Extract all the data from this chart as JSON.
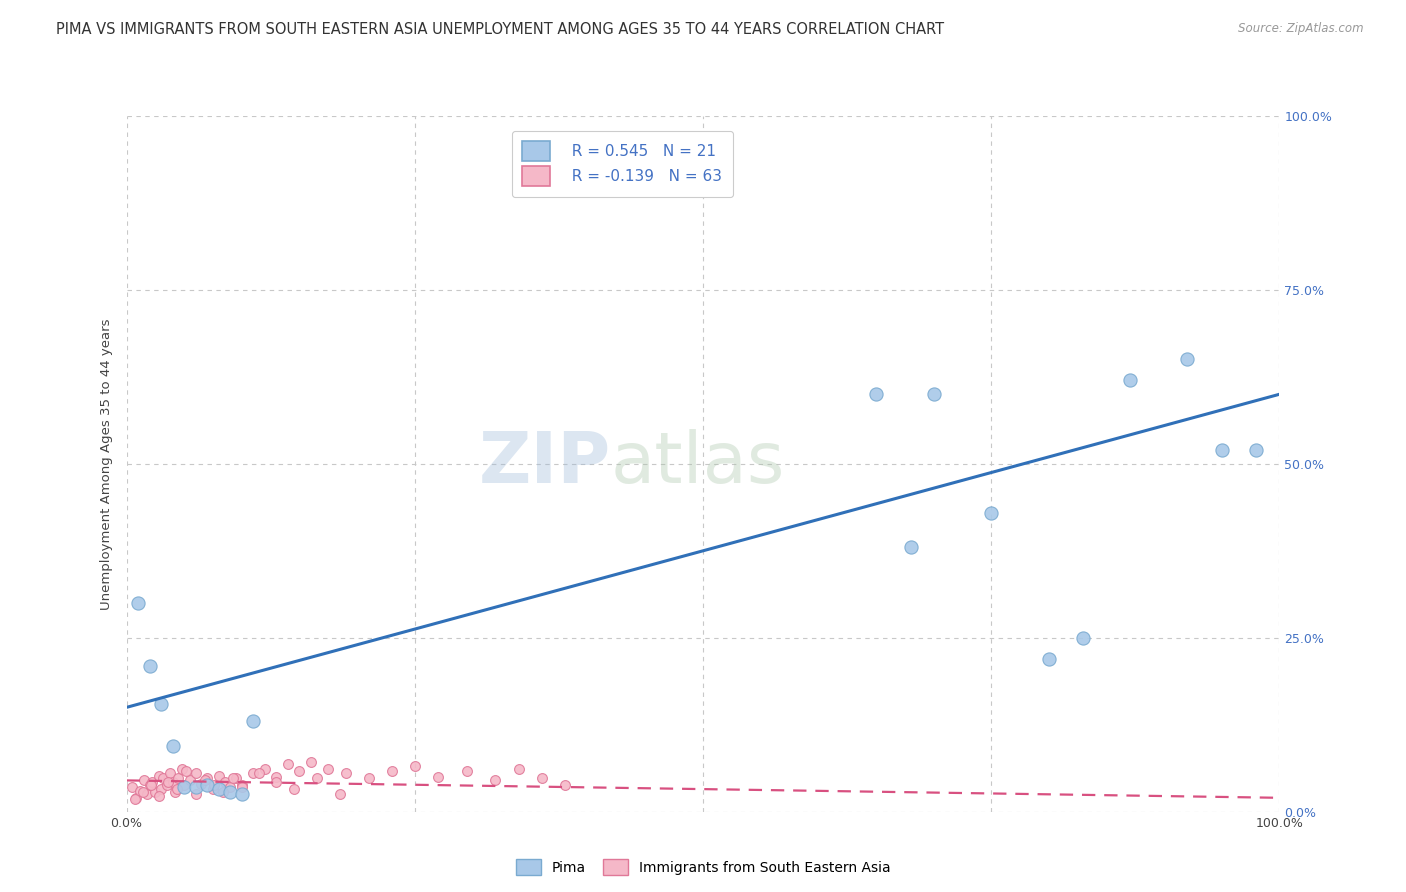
{
  "title": "PIMA VS IMMIGRANTS FROM SOUTH EASTERN ASIA UNEMPLOYMENT AMONG AGES 35 TO 44 YEARS CORRELATION CHART",
  "source": "Source: ZipAtlas.com",
  "ylabel": "Unemployment Among Ages 35 to 44 years",
  "xlim": [
    0,
    1.0
  ],
  "ylim": [
    0,
    1.0
  ],
  "xticks": [
    0.0,
    0.25,
    0.5,
    0.75,
    1.0
  ],
  "xtick_labels": [
    "0.0%",
    "",
    "",
    "",
    "100.0%"
  ],
  "yticks": [
    0.0,
    0.25,
    0.5,
    0.75,
    1.0
  ],
  "right_ytick_labels": [
    "0.0%",
    "25.0%",
    "50.0%",
    "75.0%",
    "100.0%"
  ],
  "pima_color": "#A8C8E8",
  "pima_edge_color": "#7AAAD0",
  "immigrants_color": "#F5B8C8",
  "immigrants_edge_color": "#E07898",
  "pima_R": 0.545,
  "pima_N": 21,
  "immigrants_R": -0.139,
  "immigrants_N": 63,
  "pima_line_color": "#3070B8",
  "immigrants_line_color": "#D85080",
  "watermark_zip": "ZIP",
  "watermark_atlas": "atlas",
  "background_color": "#FFFFFF",
  "grid_color": "#C8C8C8",
  "pima_x": [
    0.01,
    0.02,
    0.03,
    0.04,
    0.05,
    0.06,
    0.07,
    0.08,
    0.09,
    0.1,
    0.11,
    0.65,
    0.7,
    0.75,
    0.8,
    0.83,
    0.87,
    0.92,
    0.95,
    0.98,
    0.68
  ],
  "pima_y": [
    0.3,
    0.21,
    0.155,
    0.095,
    0.035,
    0.035,
    0.038,
    0.032,
    0.028,
    0.025,
    0.13,
    0.6,
    0.6,
    0.43,
    0.22,
    0.25,
    0.62,
    0.65,
    0.52,
    0.52,
    0.38
  ],
  "immigrants_x": [
    0.005,
    0.008,
    0.012,
    0.015,
    0.018,
    0.02,
    0.022,
    0.025,
    0.028,
    0.03,
    0.032,
    0.035,
    0.038,
    0.04,
    0.042,
    0.045,
    0.048,
    0.05,
    0.055,
    0.06,
    0.065,
    0.07,
    0.075,
    0.08,
    0.085,
    0.09,
    0.095,
    0.1,
    0.11,
    0.12,
    0.13,
    0.14,
    0.15,
    0.16,
    0.175,
    0.19,
    0.21,
    0.23,
    0.25,
    0.27,
    0.295,
    0.32,
    0.34,
    0.36,
    0.38,
    0.007,
    0.014,
    0.021,
    0.028,
    0.036,
    0.044,
    0.052,
    0.06,
    0.068,
    0.076,
    0.084,
    0.092,
    0.1,
    0.115,
    0.13,
    0.145,
    0.165,
    0.185
  ],
  "immigrants_y": [
    0.035,
    0.02,
    0.03,
    0.045,
    0.025,
    0.038,
    0.042,
    0.028,
    0.052,
    0.032,
    0.048,
    0.038,
    0.055,
    0.042,
    0.028,
    0.048,
    0.062,
    0.038,
    0.045,
    0.055,
    0.04,
    0.048,
    0.032,
    0.052,
    0.042,
    0.035,
    0.048,
    0.038,
    0.055,
    0.062,
    0.05,
    0.068,
    0.058,
    0.072,
    0.062,
    0.055,
    0.048,
    0.058,
    0.065,
    0.05,
    0.058,
    0.045,
    0.062,
    0.048,
    0.038,
    0.018,
    0.028,
    0.038,
    0.022,
    0.042,
    0.032,
    0.058,
    0.025,
    0.045,
    0.038,
    0.028,
    0.048,
    0.035,
    0.055,
    0.042,
    0.032,
    0.048,
    0.025
  ],
  "pima_trend_x0": 0.0,
  "pima_trend_y0": 0.15,
  "pima_trend_x1": 1.0,
  "pima_trend_y1": 0.6,
  "imm_trend_x0": 0.0,
  "imm_trend_y0": 0.045,
  "imm_trend_x1": 1.0,
  "imm_trend_y1": 0.02,
  "title_fontsize": 10.5,
  "source_fontsize": 8.5,
  "axis_label_fontsize": 9.5,
  "tick_fontsize": 9,
  "legend_fontsize": 11,
  "pima_marker_size": 90,
  "immigrants_marker_size": 50
}
